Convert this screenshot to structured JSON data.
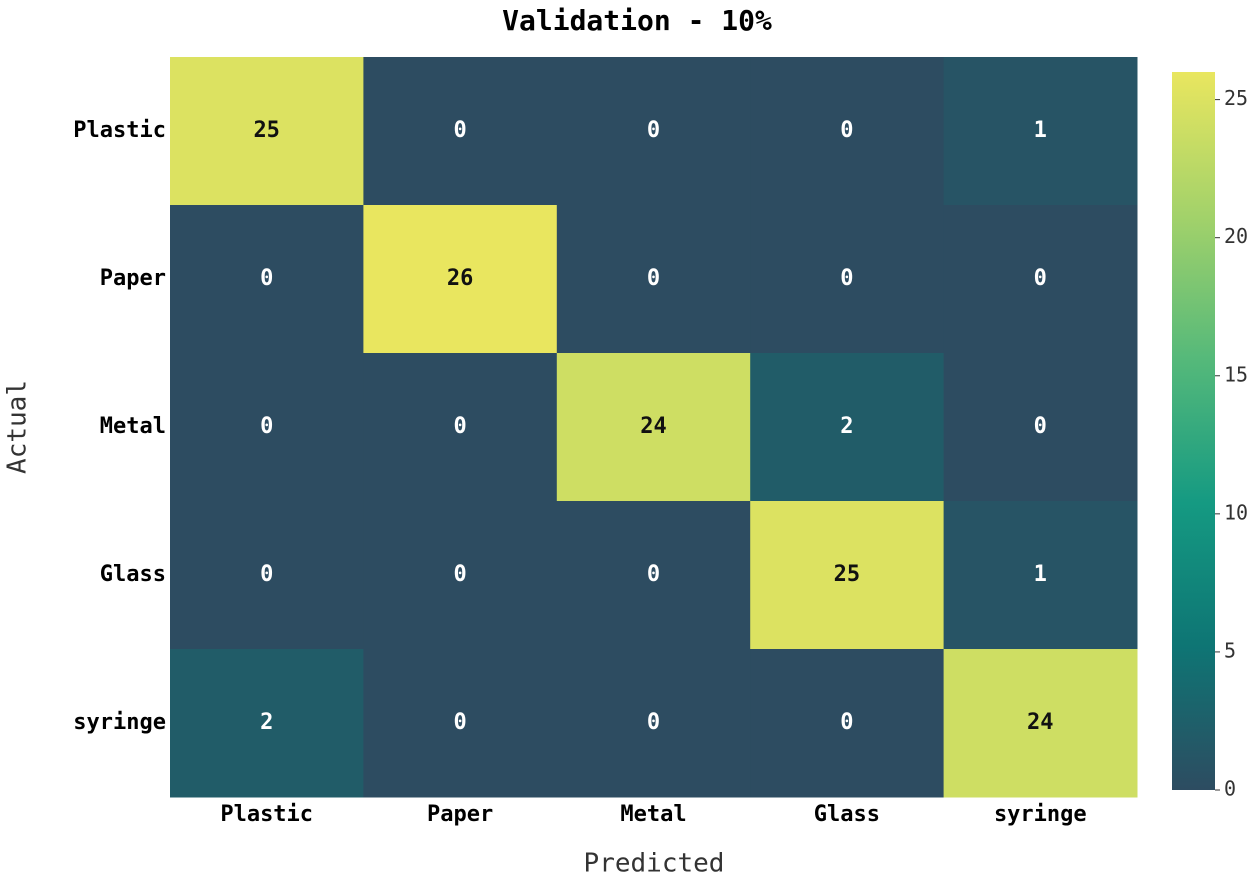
{
  "chart_data": {
    "type": "heatmap",
    "title": "Validation - 10%",
    "x_label": "Predicted",
    "y_label": "Actual",
    "x_categories": [
      "Plastic",
      "Paper",
      "Metal",
      "Glass",
      "syringe"
    ],
    "y_categories": [
      "Plastic",
      "Paper",
      "Metal",
      "Glass",
      "syringe"
    ],
    "values": [
      [
        25,
        0,
        0,
        0,
        1
      ],
      [
        0,
        26,
        0,
        0,
        0
      ],
      [
        0,
        0,
        24,
        2,
        0
      ],
      [
        0,
        0,
        0,
        25,
        1
      ],
      [
        2,
        0,
        0,
        0,
        24
      ]
    ],
    "clim": [
      0,
      26
    ],
    "cticks": [
      0,
      5,
      10,
      15,
      20,
      25
    ],
    "colormap": [
      "#2d4c61",
      "#0e7574",
      "#159a82",
      "#55b97a",
      "#a3d26a",
      "#e9e65f"
    ]
  }
}
